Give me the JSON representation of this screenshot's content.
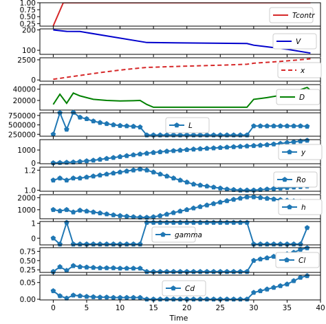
{
  "figure": {
    "xlabel": "Time",
    "x_ticks": [
      0,
      5,
      10,
      15,
      20,
      25,
      30,
      35,
      40
    ],
    "xlim": [
      -2,
      40
    ]
  },
  "chart_data": [
    {
      "type": "line",
      "legend": "Tcontr",
      "color": "#d62728",
      "dash": "solid",
      "marker": "none",
      "lw": 2,
      "ylim": [
        0.16,
        1.0
      ],
      "yticks": [
        {
          "v": 0.25,
          "t": "0.25"
        },
        {
          "v": 0.5,
          "t": "0.50"
        },
        {
          "v": 0.75,
          "t": "0.75"
        },
        {
          "v": 1.0,
          "t": "1.00"
        }
      ],
      "x": [
        0,
        1.5,
        38.5
      ],
      "y": [
        0.17,
        1.0,
        1.0
      ]
    },
    {
      "type": "line",
      "legend": "V",
      "color": "#0000cc",
      "dash": "solid",
      "marker": "none",
      "lw": 2,
      "ylim": [
        80,
        205
      ],
      "yticks": [
        {
          "v": 100,
          "t": "100"
        },
        {
          "v": 200,
          "t": "200"
        }
      ],
      "x": [
        0,
        2,
        4,
        14,
        29,
        30,
        35,
        38.5
      ],
      "y": [
        200,
        193,
        192,
        138,
        133,
        125,
        105,
        86
      ]
    },
    {
      "type": "line",
      "legend": "x",
      "color": "#d62728",
      "dash": "6,4",
      "marker": "none",
      "lw": 2,
      "ylim": [
        -150,
        2750
      ],
      "yticks": [
        {
          "v": 0,
          "t": "0"
        },
        {
          "v": 2500,
          "t": "2500"
        }
      ],
      "x": [
        0,
        2,
        4,
        6,
        8,
        10,
        12,
        14,
        20,
        25,
        29,
        30,
        34,
        38.5
      ],
      "y": [
        80,
        330,
        560,
        800,
        1020,
        1220,
        1400,
        1560,
        1720,
        1830,
        1950,
        2080,
        2300,
        2620
      ]
    },
    {
      "type": "line",
      "legend": "D",
      "color": "#008000",
      "dash": "solid",
      "marker": "none",
      "lw": 2,
      "ylim": [
        3000,
        48000
      ],
      "yticks": [
        {
          "v": 20000,
          "t": "20000"
        },
        {
          "v": 40000,
          "t": "40000"
        }
      ],
      "x": [
        0,
        1,
        2,
        3,
        4,
        6,
        8,
        10,
        12,
        13,
        14,
        15,
        29,
        30,
        32,
        34,
        36,
        38,
        38.5
      ],
      "y": [
        13000,
        31000,
        15000,
        33000,
        28000,
        22000,
        20000,
        19000,
        19500,
        20000,
        13000,
        8000,
        8000,
        22000,
        25000,
        29000,
        35000,
        43000,
        38000
      ]
    },
    {
      "type": "line",
      "legend": "L",
      "color": "#1f77b4",
      "marker": "pentagon",
      "lw": 2,
      "ylim": [
        200000,
        820000
      ],
      "yticks": [
        {
          "v": 250000,
          "t": "250000"
        },
        {
          "v": 500000,
          "t": "500000"
        },
        {
          "v": 750000,
          "t": "750000"
        }
      ],
      "x": [
        0,
        1,
        2,
        3,
        4,
        5,
        6,
        7,
        8,
        9,
        10,
        11,
        12,
        13,
        14,
        15,
        16,
        17,
        18,
        19,
        20,
        21,
        22,
        23,
        24,
        25,
        26,
        27,
        28,
        29,
        30,
        31,
        32,
        33,
        34,
        35,
        36,
        37,
        38
      ],
      "y": [
        250000,
        820000,
        380000,
        830000,
        700000,
        660000,
        600000,
        560000,
        530000,
        500000,
        480000,
        470000,
        460000,
        440000,
        230000,
        230000,
        230000,
        230000,
        230000,
        230000,
        230000,
        230000,
        230000,
        230000,
        230000,
        230000,
        230000,
        230000,
        230000,
        230000,
        470000,
        470000,
        470000,
        470000,
        470000,
        470000,
        470000,
        470000,
        460000
      ]
    },
    {
      "type": "line",
      "legend": "y",
      "color": "#1f77b4",
      "marker": "pentagon",
      "lw": 2,
      "ylim": [
        -60,
        1800
      ],
      "yticks": [
        {
          "v": 0,
          "t": "0"
        },
        {
          "v": 1000,
          "t": "1000"
        }
      ],
      "x": [
        0,
        1,
        2,
        3,
        4,
        5,
        6,
        7,
        8,
        9,
        10,
        11,
        12,
        13,
        14,
        15,
        16,
        17,
        18,
        19,
        20,
        21,
        22,
        23,
        24,
        25,
        26,
        27,
        28,
        29,
        30,
        31,
        32,
        33,
        34,
        35,
        36,
        37,
        38
      ],
      "y": [
        0,
        20,
        40,
        60,
        100,
        150,
        200,
        270,
        340,
        410,
        480,
        550,
        620,
        680,
        740,
        800,
        850,
        900,
        940,
        980,
        1020,
        1060,
        1090,
        1120,
        1150,
        1180,
        1210,
        1240,
        1270,
        1300,
        1330,
        1360,
        1400,
        1450,
        1500,
        1560,
        1620,
        1680,
        1740
      ]
    },
    {
      "type": "line",
      "legend": "Ro",
      "color": "#1f77b4",
      "marker": "pentagon",
      "lw": 2,
      "ylim": [
        0.99,
        1.23
      ],
      "yticks": [
        {
          "v": 1.0,
          "t": "1.0"
        },
        {
          "v": 1.2,
          "t": "1.2"
        }
      ],
      "x": [
        0,
        1,
        2,
        3,
        4,
        5,
        6,
        7,
        8,
        9,
        10,
        11,
        12,
        13,
        14,
        15,
        16,
        17,
        18,
        19,
        20,
        21,
        22,
        23,
        24,
        25,
        26,
        27,
        28,
        29,
        30,
        31,
        32,
        33,
        34,
        35,
        36,
        37,
        38
      ],
      "y": [
        1.1,
        1.12,
        1.1,
        1.12,
        1.12,
        1.13,
        1.14,
        1.15,
        1.16,
        1.17,
        1.18,
        1.19,
        1.2,
        1.21,
        1.2,
        1.18,
        1.16,
        1.14,
        1.12,
        1.1,
        1.08,
        1.06,
        1.05,
        1.04,
        1.03,
        1.02,
        1.01,
        1.005,
        1.0,
        1.0,
        1.0,
        1.005,
        1.01,
        1.015,
        1.02,
        1.025,
        1.03,
        1.035,
        1.04
      ]
    },
    {
      "type": "line",
      "legend": "h",
      "color": "#1f77b4",
      "marker": "pentagon",
      "lw": 2,
      "ylim": [
        250,
        2250
      ],
      "yticks": [
        {
          "v": 1000,
          "t": "1000"
        },
        {
          "v": 2000,
          "t": "2000"
        }
      ],
      "x": [
        0,
        1,
        2,
        3,
        4,
        5,
        6,
        7,
        8,
        9,
        10,
        11,
        12,
        13,
        14,
        15,
        16,
        17,
        18,
        19,
        20,
        21,
        22,
        23,
        24,
        25,
        26,
        27,
        28,
        29,
        30,
        31,
        32,
        33,
        34,
        35,
        36,
        37,
        38
      ],
      "y": [
        1000,
        900,
        1000,
        800,
        950,
        880,
        800,
        720,
        640,
        560,
        500,
        450,
        400,
        370,
        360,
        400,
        500,
        620,
        750,
        880,
        1000,
        1130,
        1250,
        1380,
        1500,
        1620,
        1740,
        1850,
        1950,
        2050,
        2060,
        2000,
        1940,
        1880,
        1820,
        1770,
        1720,
        1680,
        1640
      ]
    },
    {
      "type": "line",
      "legend": "gamma",
      "color": "#1f77b4",
      "marker": "pentagon",
      "lw": 2,
      "ylim": [
        -0.45,
        1.12
      ],
      "yticks": [
        {
          "v": 0,
          "t": "0"
        },
        {
          "v": 1,
          "t": "1"
        }
      ],
      "x": [
        0,
        1,
        2,
        3,
        4,
        5,
        6,
        7,
        8,
        9,
        10,
        11,
        12,
        13,
        14,
        15,
        16,
        17,
        18,
        19,
        20,
        21,
        22,
        23,
        24,
        25,
        26,
        27,
        28,
        29,
        30,
        31,
        32,
        33,
        34,
        35,
        36,
        37,
        38
      ],
      "y": [
        0,
        -0.4,
        1.05,
        -0.4,
        -0.4,
        -0.4,
        -0.4,
        -0.4,
        -0.4,
        -0.4,
        -0.4,
        -0.4,
        -0.4,
        -0.4,
        1.05,
        1.05,
        1.05,
        1.05,
        1.05,
        1.05,
        1.05,
        1.05,
        1.05,
        1.05,
        1.05,
        1.05,
        1.05,
        1.05,
        1.05,
        1.05,
        -0.4,
        -0.4,
        -0.4,
        -0.4,
        -0.4,
        -0.4,
        -0.4,
        -0.4,
        0.7
      ]
    },
    {
      "type": "line",
      "legend": "Cl",
      "color": "#1f77b4",
      "marker": "pentagon",
      "lw": 2,
      "ylim": [
        0.18,
        0.85
      ],
      "yticks": [
        {
          "v": 0.25,
          "t": "0.25"
        },
        {
          "v": 0.5,
          "t": "0.50"
        },
        {
          "v": 0.75,
          "t": "0.75"
        }
      ],
      "x": [
        0,
        1,
        2,
        3,
        4,
        5,
        6,
        7,
        8,
        9,
        10,
        11,
        12,
        13,
        14,
        15,
        16,
        17,
        18,
        19,
        20,
        21,
        22,
        23,
        24,
        25,
        26,
        27,
        28,
        29,
        30,
        31,
        32,
        33,
        34,
        35,
        36,
        37,
        38
      ],
      "y": [
        0.2,
        0.33,
        0.23,
        0.36,
        0.33,
        0.32,
        0.31,
        0.3,
        0.3,
        0.3,
        0.29,
        0.29,
        0.29,
        0.29,
        0.2,
        0.2,
        0.2,
        0.2,
        0.2,
        0.2,
        0.2,
        0.2,
        0.2,
        0.2,
        0.2,
        0.2,
        0.2,
        0.2,
        0.2,
        0.2,
        0.5,
        0.54,
        0.57,
        0.61,
        0.65,
        0.68,
        0.72,
        0.8,
        0.84
      ]
    },
    {
      "type": "line",
      "legend": "Cd",
      "color": "#1f77b4",
      "marker": "pentagon",
      "lw": 2,
      "ylim": [
        -0.002,
        0.072
      ],
      "yticks": [
        {
          "v": 0.0,
          "t": "0.00"
        },
        {
          "v": 0.05,
          "t": "0.05"
        }
      ],
      "x": [
        0,
        1,
        2,
        3,
        4,
        5,
        6,
        7,
        8,
        9,
        10,
        11,
        12,
        13,
        14,
        15,
        16,
        17,
        18,
        19,
        20,
        21,
        22,
        23,
        24,
        25,
        26,
        27,
        28,
        29,
        30,
        31,
        32,
        33,
        34,
        35,
        36,
        37,
        38
      ],
      "y": [
        0.025,
        0.01,
        0.003,
        0.012,
        0.01,
        0.008,
        0.007,
        0.006,
        0.006,
        0.005,
        0.005,
        0.005,
        0.005,
        0.005,
        0.0,
        0.0,
        0.0,
        0.0,
        0.0,
        0.0,
        0.0,
        0.0,
        0.0,
        0.0,
        0.0,
        0.0,
        0.0,
        0.0,
        0.0,
        0.0,
        0.02,
        0.025,
        0.03,
        0.035,
        0.04,
        0.045,
        0.055,
        0.065,
        0.07
      ]
    }
  ]
}
